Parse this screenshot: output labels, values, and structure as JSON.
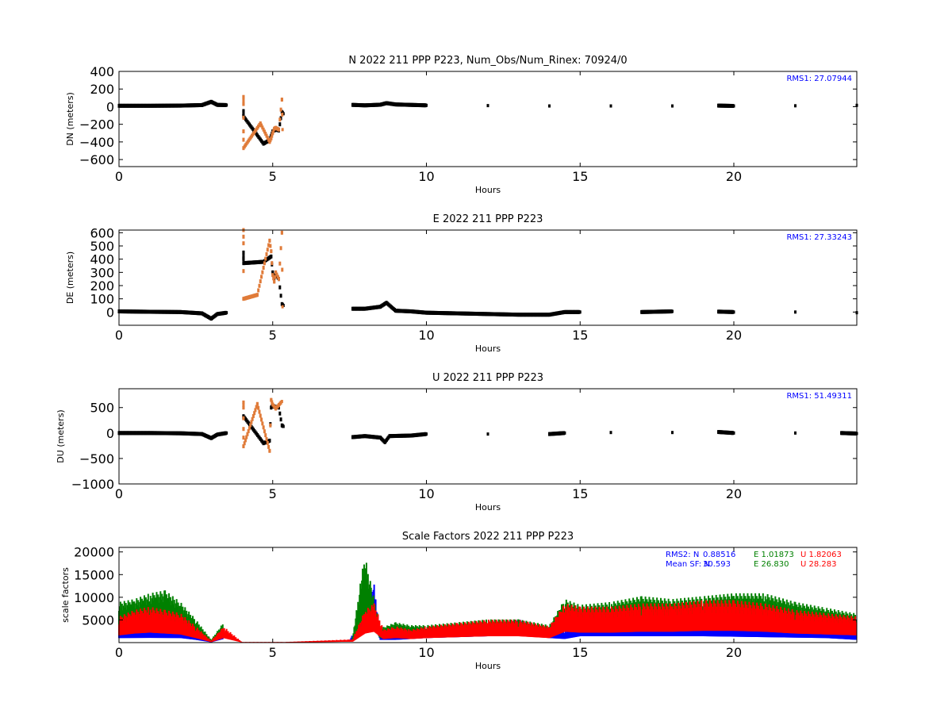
{
  "chart_data": [
    {
      "type": "scatter",
      "title": "N 2022 211 PPP  P223, Num_Obs/Num_Rinex: 70924/0",
      "xlabel": "Hours",
      "ylabel": "DN (meters)",
      "xlim": [
        0,
        24
      ],
      "ylim": [
        -680,
        400
      ],
      "xticks": [
        0,
        5,
        10,
        15,
        20
      ],
      "xtick_labels": [
        "0",
        "5",
        "10",
        "15",
        "20"
      ],
      "yticks": [
        400,
        200,
        0,
        -200,
        -400,
        -600
      ],
      "ytick_labels": [
        "400",
        "200",
        "0",
        "−200",
        "−400",
        "−600"
      ],
      "annotations": [
        {
          "text": "RMS1: 27.07944",
          "color": "#0000ff"
        }
      ],
      "series": [
        {
          "color": "#000000",
          "x": [
            0,
            1,
            2,
            2.7,
            3.0,
            3.2,
            3.5,
            7.6,
            8.0,
            8.5,
            8.7,
            9.0,
            9.5,
            10,
            12,
            14,
            16,
            18,
            19.5,
            20,
            22,
            24
          ],
          "y": [
            10,
            10,
            12,
            18,
            55,
            20,
            18,
            20,
            15,
            22,
            40,
            25,
            20,
            15,
            12,
            8,
            8,
            8,
            12,
            8,
            10,
            15
          ]
        },
        {
          "color": "#000000",
          "x": [
            4.05,
            4.05,
            4.05,
            4.7,
            4.9,
            4.95,
            5.0,
            5.05,
            5.1,
            5.2,
            5.3,
            5.35
          ],
          "y": [
            -50,
            -100,
            -110,
            -420,
            -380,
            -330,
            -280,
            -270,
            -260,
            -270,
            -60,
            -80
          ]
        },
        {
          "color": "#e07b39",
          "x": [
            4.05,
            4.05,
            4.05,
            4.05,
            4.6,
            4.9,
            4.95,
            5.0,
            5.05,
            5.1,
            5.2,
            5.3,
            5.32
          ],
          "y": [
            110,
            30,
            -280,
            -470,
            -190,
            -400,
            -360,
            -300,
            -250,
            -240,
            -260,
            80,
            -260
          ]
        }
      ]
    },
    {
      "type": "scatter",
      "title": "E 2022 211 PPP  P223",
      "xlabel": "Hours",
      "ylabel": "DE (meters)",
      "xlim": [
        0,
        24
      ],
      "ylim": [
        -100,
        620
      ],
      "xticks": [
        0,
        5,
        10,
        15,
        20
      ],
      "xtick_labels": [
        "0",
        "5",
        "10",
        "15",
        "20"
      ],
      "yticks": [
        600,
        500,
        400,
        300,
        200,
        100,
        0
      ],
      "ytick_labels": [
        "600",
        "500",
        "400",
        "300",
        "200",
        "100",
        "0"
      ],
      "annotations": [
        {
          "text": "RMS1: 27.33243",
          "color": "#0000ff"
        }
      ],
      "series": [
        {
          "color": "#000000",
          "x": [
            0,
            1,
            2,
            2.7,
            3.0,
            3.2,
            3.5,
            7.6,
            8.0,
            8.5,
            8.7,
            9.0,
            9.5,
            10,
            11,
            12,
            13,
            14,
            14.5,
            15,
            17,
            18,
            19.5,
            20,
            22,
            24
          ],
          "y": [
            5,
            2,
            0,
            -10,
            -50,
            -15,
            -5,
            25,
            25,
            40,
            70,
            10,
            5,
            -5,
            -10,
            -15,
            -20,
            -20,
            0,
            0,
            0,
            5,
            3,
            0,
            0,
            -5
          ]
        },
        {
          "color": "#000000",
          "x": [
            4.05,
            4.05,
            4.05,
            4.7,
            4.95,
            5.0,
            5.05,
            5.1,
            5.2,
            5.3,
            5.35
          ],
          "y": [
            400,
            450,
            370,
            380,
            420,
            300,
            260,
            280,
            250,
            60,
            50
          ]
        },
        {
          "color": "#e07b39",
          "x": [
            4.05,
            4.05,
            4.05,
            4.5,
            4.9,
            4.95,
            5.0,
            5.05,
            5.1,
            5.2,
            5.3,
            5.32
          ],
          "y": [
            620,
            520,
            100,
            130,
            540,
            460,
            280,
            230,
            300,
            250,
            600,
            40
          ]
        }
      ]
    },
    {
      "type": "scatter",
      "title": "U 2022 211 PPP  P223",
      "xlabel": "Hours",
      "ylabel": "DU (meters)",
      "xlim": [
        0,
        24
      ],
      "ylim": [
        -1000,
        870
      ],
      "xticks": [
        0,
        5,
        10,
        15,
        20
      ],
      "xtick_labels": [
        "0",
        "5",
        "10",
        "15",
        "20"
      ],
      "yticks": [
        500,
        0,
        -500,
        -1000
      ],
      "ytick_labels": [
        "500",
        "0",
        "−500",
        "−1000"
      ],
      "annotations": [
        {
          "text": "RMS1: 51.49311",
          "color": "#0000ff"
        }
      ],
      "series": [
        {
          "color": "#000000",
          "x": [
            0,
            1,
            2,
            2.7,
            3.0,
            3.2,
            3.5,
            7.6,
            8.0,
            8.5,
            8.65,
            8.8,
            9.5,
            10,
            12,
            14,
            14.5,
            16,
            18,
            19.5,
            20,
            22,
            23.5,
            24
          ],
          "y": [
            0,
            0,
            -5,
            -20,
            -100,
            -30,
            0,
            -80,
            -60,
            -90,
            -180,
            -60,
            -50,
            -20,
            -20,
            -20,
            0,
            10,
            10,
            20,
            0,
            0,
            0,
            -10
          ]
        },
        {
          "color": "#000000",
          "x": [
            4.05,
            4.05,
            4.7,
            4.9,
            4.95,
            5.0,
            5.05,
            5.1,
            5.2,
            5.3,
            5.35
          ],
          "y": [
            300,
            330,
            -200,
            -150,
            500,
            540,
            520,
            510,
            500,
            150,
            130
          ]
        },
        {
          "color": "#e07b39",
          "x": [
            4.05,
            4.05,
            4.05,
            4.05,
            4.5,
            4.9,
            4.95,
            5.0,
            5.1,
            5.3
          ],
          "y": [
            600,
            500,
            80,
            -260,
            570,
            -350,
            650,
            560,
            480,
            620
          ]
        }
      ]
    },
    {
      "type": "scatter",
      "title": "Scale Factors 2022 211 PPP  P223",
      "xlabel": "Hours",
      "ylabel": "scale factors",
      "xlim": [
        0,
        24
      ],
      "ylim": [
        0,
        21000
      ],
      "xticks": [
        0,
        5,
        10,
        15,
        20
      ],
      "xtick_labels": [
        "0",
        "5",
        "10",
        "15",
        "20"
      ],
      "yticks": [
        20000,
        15000,
        10000,
        5000
      ],
      "ytick_labels": [
        "20000",
        "15000",
        "10000",
        "5000"
      ],
      "annotations": [
        {
          "label": "RMS2: N ",
          "n": "0.88516",
          "e": "1.01873",
          "u": "1.82063"
        },
        {
          "label": "Mean SF: N ",
          "n": "30.593",
          "e": "26.830",
          "u": "28.283"
        }
      ],
      "series_colors": {
        "N": "#0000ff",
        "E": "#008000",
        "U": "#ff0000"
      },
      "series": [
        {
          "name": "N",
          "color": "#0000ff",
          "x": [
            0,
            1,
            2,
            2.5,
            3.0,
            3.4,
            7.5,
            8.0,
            8.3,
            8.5,
            9.0,
            9.5,
            10,
            11,
            12,
            13,
            14,
            14.5,
            15,
            17,
            19,
            21,
            23,
            24
          ],
          "y": [
            2500,
            2600,
            2500,
            1500,
            200,
            2000,
            500,
            5000,
            10000,
            1500,
            1500,
            2000,
            2500,
            3000,
            3500,
            4000,
            2500,
            2000,
            3500,
            3500,
            3500,
            3000,
            2500,
            1500
          ]
        },
        {
          "name": "E",
          "color": "#008000",
          "x": [
            0,
            0.5,
            1,
            1.5,
            2,
            2.5,
            3.0,
            3.4,
            7.6,
            7.9,
            8.0,
            8.2,
            8.5,
            9,
            9.5,
            10,
            11,
            12,
            13,
            14,
            14.5,
            15,
            16,
            17,
            18,
            19,
            20,
            21,
            22,
            23,
            24
          ],
          "y": [
            7000,
            7500,
            8500,
            9000,
            7000,
            4000,
            500,
            3500,
            1000,
            12000,
            15000,
            10000,
            2500,
            3500,
            3000,
            3000,
            3500,
            4000,
            4000,
            3000,
            7500,
            6500,
            7000,
            8000,
            7500,
            8000,
            8500,
            8500,
            7000,
            6000,
            5000
          ]
        },
        {
          "name": "U",
          "color": "#ff0000",
          "x": [
            0,
            0.5,
            1,
            1.5,
            2,
            2.5,
            3.0,
            3.4,
            4.0,
            5.0,
            5.4,
            7.6,
            8.0,
            8.3,
            8.6,
            9,
            9.5,
            10,
            11,
            12,
            13,
            14,
            14.5,
            15,
            16,
            17,
            18,
            19,
            20,
            21,
            22,
            23,
            24
          ],
          "y": [
            4000,
            5000,
            5500,
            5000,
            4500,
            2500,
            300,
            2500,
            100,
            100,
            100,
            500,
            5000,
            6000,
            2000,
            2500,
            2000,
            2500,
            3000,
            3500,
            3500,
            2500,
            6000,
            5500,
            5500,
            6000,
            6000,
            6500,
            6500,
            6000,
            5000,
            4500,
            4000
          ]
        }
      ]
    }
  ]
}
